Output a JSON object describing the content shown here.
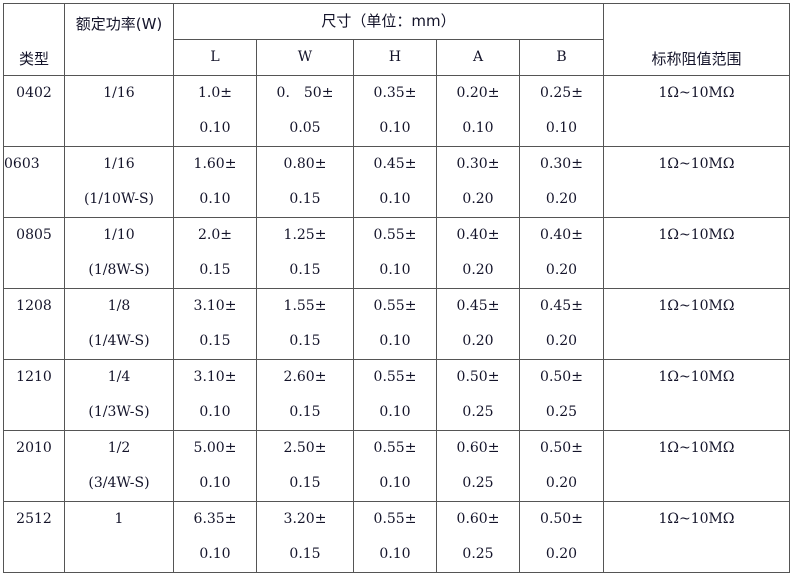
{
  "header": {
    "type": "类型",
    "power": "额定功率(W)",
    "size": "尺寸（单位：mm）",
    "dims": [
      "L",
      "W",
      "H",
      "A",
      "B"
    ],
    "range": "标称阻值范围"
  },
  "rows": [
    {
      "type": "0402",
      "power": [
        "1/16",
        ""
      ],
      "dims": [
        [
          "1.0±",
          "0.10"
        ],
        [
          "0.　50±",
          "0.05"
        ],
        [
          "0.35±",
          "0.10"
        ],
        [
          "0.20±",
          "0.10"
        ],
        [
          "0.25±",
          "0.10"
        ]
      ],
      "range": "1Ω~10MΩ"
    },
    {
      "type": "0603",
      "power": [
        "1/16",
        "(1/10W-S)"
      ],
      "dims": [
        [
          "1.60±",
          "0.10"
        ],
        [
          "0.80±",
          "0.15"
        ],
        [
          "0.45±",
          "0.10"
        ],
        [
          "0.30±",
          "0.20"
        ],
        [
          "0.30±",
          "0.20"
        ]
      ],
      "range": "1Ω~10MΩ"
    },
    {
      "type": "0805",
      "power": [
        "1/10",
        "(1/8W-S)"
      ],
      "dims": [
        [
          "2.0±",
          "0.15"
        ],
        [
          "1.25±",
          "0.15"
        ],
        [
          "0.55±",
          "0.10"
        ],
        [
          "0.40±",
          "0.20"
        ],
        [
          "0.40±",
          "0.20"
        ]
      ],
      "range": "1Ω~10MΩ"
    },
    {
      "type": "1208",
      "power": [
        "1/8",
        "(1/4W-S)"
      ],
      "dims": [
        [
          "3.10±",
          "0.15"
        ],
        [
          "1.55±",
          "0.15"
        ],
        [
          "0.55±",
          "0.10"
        ],
        [
          "0.45±",
          "0.20"
        ],
        [
          "0.45±",
          "0.20"
        ]
      ],
      "range": "1Ω~10MΩ"
    },
    {
      "type": "1210",
      "power": [
        "1/4",
        "(1/3W-S)"
      ],
      "dims": [
        [
          "3.10±",
          "0.10"
        ],
        [
          "2.60±",
          "0.15"
        ],
        [
          "0.55±",
          "0.10"
        ],
        [
          "0.50±",
          "0.25"
        ],
        [
          "0.50±",
          "0.25"
        ]
      ],
      "range": "1Ω~10MΩ"
    },
    {
      "type": "2010",
      "power": [
        "1/2",
        "(3/4W-S)"
      ],
      "dims": [
        [
          "5.00±",
          "0.10"
        ],
        [
          "2.50±",
          "0.15"
        ],
        [
          "0.55±",
          "0.10"
        ],
        [
          "0.60±",
          "0.25"
        ],
        [
          "0.50±",
          "0.20"
        ]
      ],
      "range": "1Ω~10MΩ"
    },
    {
      "type": "2512",
      "power": [
        "1",
        ""
      ],
      "dims": [
        [
          "6.35±",
          "0.10"
        ],
        [
          "3.20±",
          "0.15"
        ],
        [
          "0.55±",
          "0.10"
        ],
        [
          "0.60±",
          "0.25"
        ],
        [
          "0.50±",
          "0.20"
        ]
      ],
      "range": "1Ω~10MΩ"
    }
  ]
}
